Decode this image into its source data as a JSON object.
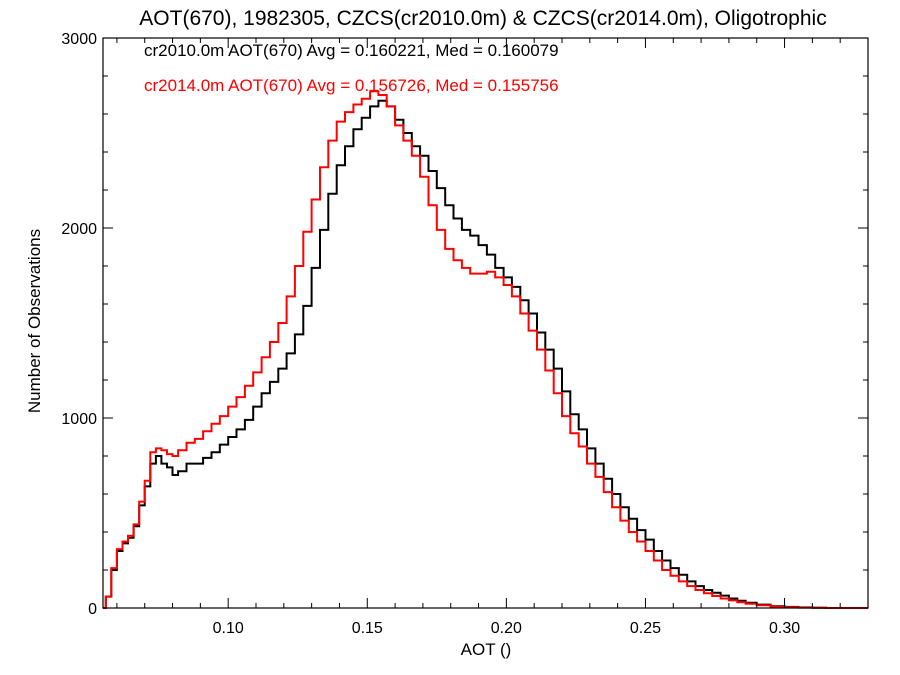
{
  "chart_data": {
    "type": "line",
    "title": "AOT(670), 1982305, CZCS(cr2010.0m) & CZCS(cr2014.0m), Oligotrophic",
    "xlabel": "AOT ()",
    "ylabel": "Number of Observations",
    "xlim": [
      0.055,
      0.33
    ],
    "ylim": [
      0,
      3000
    ],
    "x_ticks": [
      0.1,
      0.15,
      0.2,
      0.25,
      0.3
    ],
    "x_tick_labels": [
      "0.10",
      "0.15",
      "0.20",
      "0.25",
      "0.30"
    ],
    "y_ticks": [
      0,
      1000,
      2000,
      3000
    ],
    "y_tick_labels": [
      "0",
      "1000",
      "2000",
      "3000"
    ],
    "grid": false,
    "legend_position": "top-left",
    "annotations": [
      {
        "text": "cr2010.0m AOT(670) Avg = 0.160221, Med = 0.160079",
        "color": "#000000"
      },
      {
        "text": "cr2014.0m AOT(670) Avg = 0.156726, Med = 0.155756",
        "color": "#ff0000"
      }
    ],
    "series": [
      {
        "name": "cr2010.0m",
        "color": "#000000",
        "points": [
          [
            0.055,
            0
          ],
          [
            0.056,
            60
          ],
          [
            0.058,
            200
          ],
          [
            0.06,
            300
          ],
          [
            0.062,
            340
          ],
          [
            0.064,
            370
          ],
          [
            0.066,
            430
          ],
          [
            0.068,
            540
          ],
          [
            0.07,
            640
          ],
          [
            0.072,
            760
          ],
          [
            0.074,
            800
          ],
          [
            0.076,
            760
          ],
          [
            0.078,
            740
          ],
          [
            0.08,
            700
          ],
          [
            0.082,
            720
          ],
          [
            0.085,
            760
          ],
          [
            0.088,
            760
          ],
          [
            0.091,
            790
          ],
          [
            0.094,
            820
          ],
          [
            0.097,
            860
          ],
          [
            0.1,
            900
          ],
          [
            0.103,
            940
          ],
          [
            0.106,
            990
          ],
          [
            0.109,
            1060
          ],
          [
            0.112,
            1130
          ],
          [
            0.115,
            1190
          ],
          [
            0.118,
            1260
          ],
          [
            0.121,
            1340
          ],
          [
            0.124,
            1440
          ],
          [
            0.127,
            1590
          ],
          [
            0.13,
            1790
          ],
          [
            0.133,
            1990
          ],
          [
            0.136,
            2180
          ],
          [
            0.139,
            2330
          ],
          [
            0.142,
            2430
          ],
          [
            0.145,
            2520
          ],
          [
            0.148,
            2580
          ],
          [
            0.151,
            2640
          ],
          [
            0.154,
            2670
          ],
          [
            0.157,
            2640
          ],
          [
            0.16,
            2570
          ],
          [
            0.163,
            2500
          ],
          [
            0.166,
            2430
          ],
          [
            0.169,
            2380
          ],
          [
            0.172,
            2300
          ],
          [
            0.175,
            2210
          ],
          [
            0.178,
            2120
          ],
          [
            0.181,
            2050
          ],
          [
            0.184,
            1990
          ],
          [
            0.187,
            1960
          ],
          [
            0.19,
            1910
          ],
          [
            0.193,
            1860
          ],
          [
            0.196,
            1790
          ],
          [
            0.199,
            1740
          ],
          [
            0.202,
            1690
          ],
          [
            0.205,
            1620
          ],
          [
            0.208,
            1550
          ],
          [
            0.211,
            1450
          ],
          [
            0.214,
            1360
          ],
          [
            0.217,
            1260
          ],
          [
            0.22,
            1140
          ],
          [
            0.223,
            1020
          ],
          [
            0.226,
            940
          ],
          [
            0.229,
            840
          ],
          [
            0.232,
            760
          ],
          [
            0.235,
            680
          ],
          [
            0.238,
            600
          ],
          [
            0.241,
            530
          ],
          [
            0.244,
            470
          ],
          [
            0.247,
            410
          ],
          [
            0.25,
            360
          ],
          [
            0.253,
            300
          ],
          [
            0.256,
            250
          ],
          [
            0.259,
            210
          ],
          [
            0.262,
            175
          ],
          [
            0.265,
            140
          ],
          [
            0.268,
            115
          ],
          [
            0.271,
            95
          ],
          [
            0.274,
            80
          ],
          [
            0.277,
            65
          ],
          [
            0.28,
            50
          ],
          [
            0.283,
            38
          ],
          [
            0.286,
            28
          ],
          [
            0.29,
            18
          ],
          [
            0.295,
            10
          ],
          [
            0.3,
            6
          ],
          [
            0.305,
            3
          ],
          [
            0.31,
            1
          ],
          [
            0.315,
            0
          ],
          [
            0.33,
            0
          ]
        ]
      },
      {
        "name": "cr2014.0m",
        "color": "#ff0000",
        "points": [
          [
            0.055,
            0
          ],
          [
            0.056,
            60
          ],
          [
            0.058,
            210
          ],
          [
            0.06,
            310
          ],
          [
            0.062,
            350
          ],
          [
            0.064,
            380
          ],
          [
            0.066,
            440
          ],
          [
            0.068,
            560
          ],
          [
            0.07,
            670
          ],
          [
            0.072,
            820
          ],
          [
            0.074,
            840
          ],
          [
            0.076,
            830
          ],
          [
            0.078,
            810
          ],
          [
            0.08,
            800
          ],
          [
            0.082,
            830
          ],
          [
            0.085,
            870
          ],
          [
            0.088,
            890
          ],
          [
            0.091,
            930
          ],
          [
            0.094,
            970
          ],
          [
            0.097,
            1010
          ],
          [
            0.1,
            1060
          ],
          [
            0.103,
            1110
          ],
          [
            0.106,
            1170
          ],
          [
            0.109,
            1240
          ],
          [
            0.112,
            1320
          ],
          [
            0.115,
            1400
          ],
          [
            0.118,
            1500
          ],
          [
            0.121,
            1640
          ],
          [
            0.124,
            1800
          ],
          [
            0.127,
            1980
          ],
          [
            0.13,
            2150
          ],
          [
            0.133,
            2320
          ],
          [
            0.136,
            2460
          ],
          [
            0.139,
            2560
          ],
          [
            0.142,
            2610
          ],
          [
            0.145,
            2650
          ],
          [
            0.148,
            2680
          ],
          [
            0.151,
            2720
          ],
          [
            0.154,
            2700
          ],
          [
            0.157,
            2640
          ],
          [
            0.16,
            2540
          ],
          [
            0.163,
            2460
          ],
          [
            0.166,
            2380
          ],
          [
            0.169,
            2270
          ],
          [
            0.172,
            2120
          ],
          [
            0.175,
            1990
          ],
          [
            0.178,
            1890
          ],
          [
            0.181,
            1830
          ],
          [
            0.184,
            1790
          ],
          [
            0.187,
            1760
          ],
          [
            0.19,
            1760
          ],
          [
            0.193,
            1770
          ],
          [
            0.196,
            1740
          ],
          [
            0.199,
            1700
          ],
          [
            0.202,
            1640
          ],
          [
            0.205,
            1550
          ],
          [
            0.208,
            1460
          ],
          [
            0.211,
            1360
          ],
          [
            0.214,
            1250
          ],
          [
            0.217,
            1130
          ],
          [
            0.22,
            1010
          ],
          [
            0.223,
            920
          ],
          [
            0.226,
            850
          ],
          [
            0.229,
            760
          ],
          [
            0.232,
            690
          ],
          [
            0.235,
            610
          ],
          [
            0.238,
            530
          ],
          [
            0.241,
            460
          ],
          [
            0.244,
            400
          ],
          [
            0.247,
            350
          ],
          [
            0.25,
            300
          ],
          [
            0.253,
            250
          ],
          [
            0.256,
            200
          ],
          [
            0.259,
            170
          ],
          [
            0.262,
            140
          ],
          [
            0.265,
            115
          ],
          [
            0.268,
            95
          ],
          [
            0.271,
            78
          ],
          [
            0.274,
            63
          ],
          [
            0.277,
            50
          ],
          [
            0.28,
            40
          ],
          [
            0.283,
            30
          ],
          [
            0.286,
            22
          ],
          [
            0.29,
            14
          ],
          [
            0.295,
            8
          ],
          [
            0.3,
            4
          ],
          [
            0.305,
            2
          ],
          [
            0.31,
            1
          ],
          [
            0.315,
            0
          ],
          [
            0.33,
            0
          ]
        ]
      }
    ]
  }
}
